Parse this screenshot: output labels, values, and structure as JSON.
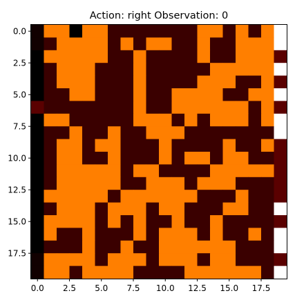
{
  "title": "Action: right Observation: 0",
  "plot": {
    "type": "image-grid",
    "rows": 20,
    "cols": 20,
    "x_ticks": [
      {
        "value": 0.0,
        "label": "0.0"
      },
      {
        "value": 2.5,
        "label": "2.5"
      },
      {
        "value": 5.0,
        "label": "5.0"
      },
      {
        "value": 7.5,
        "label": "7.5"
      },
      {
        "value": 10.0,
        "label": "10.0"
      },
      {
        "value": 12.5,
        "label": "12.5"
      },
      {
        "value": 15.0,
        "label": "15.0"
      },
      {
        "value": 17.5,
        "label": "17.5"
      }
    ],
    "y_ticks": [
      {
        "value": 0.0,
        "label": "0.0"
      },
      {
        "value": 2.5,
        "label": "2.5"
      },
      {
        "value": 5.0,
        "label": "5.0"
      },
      {
        "value": 7.5,
        "label": "7.5"
      },
      {
        "value": 10.0,
        "label": "10.0"
      },
      {
        "value": 12.5,
        "label": "12.5"
      },
      {
        "value": 15.0,
        "label": "15.0"
      },
      {
        "value": 17.5,
        "label": "17.5"
      }
    ],
    "colormap": {
      "O": "#ff7f00",
      "D": "#3a0000",
      "B": "#110000",
      "K": "#000000",
      "W": "#ffffff",
      "M": "#5a0000"
    },
    "cells": [
      "BOOKOODDDDDDDOODODOW",
      "BDOOOODODOODDODDOOOW",
      "KOOOOODDODDDDODDOOOM",
      "KDOOODDDODDDDDOOOOOW",
      "KDOOODDDODDDDOOODDOM",
      "KDDOODDDODDOOOODDOOW",
      "MDDDDDDDODDOOOOOODOM",
      "KOODDDDDOOODODOOODOW",
      "KDDODDODDOOODDDDDDDW",
      "KDOODOODDDODDDDODDOM",
      "KDOODDODDDODOODOODDM",
      "KDOOOOODOODDDDOOOOOM",
      "KDOOOOODDOOODOOODDDM",
      "KOOOOODOOOOOODDDODDM",
      "KDOOODOOODOODDDOODDW",
      "KOOOODODODDODDODDDDM",
      "KODDODDDODOOODODDODW",
      "KDDDODDODDOOOOOODDDW",
      "BOOOODOOODOOODOODDDM",
      "BOODOOOODDDDOOOOOODW"
    ]
  }
}
